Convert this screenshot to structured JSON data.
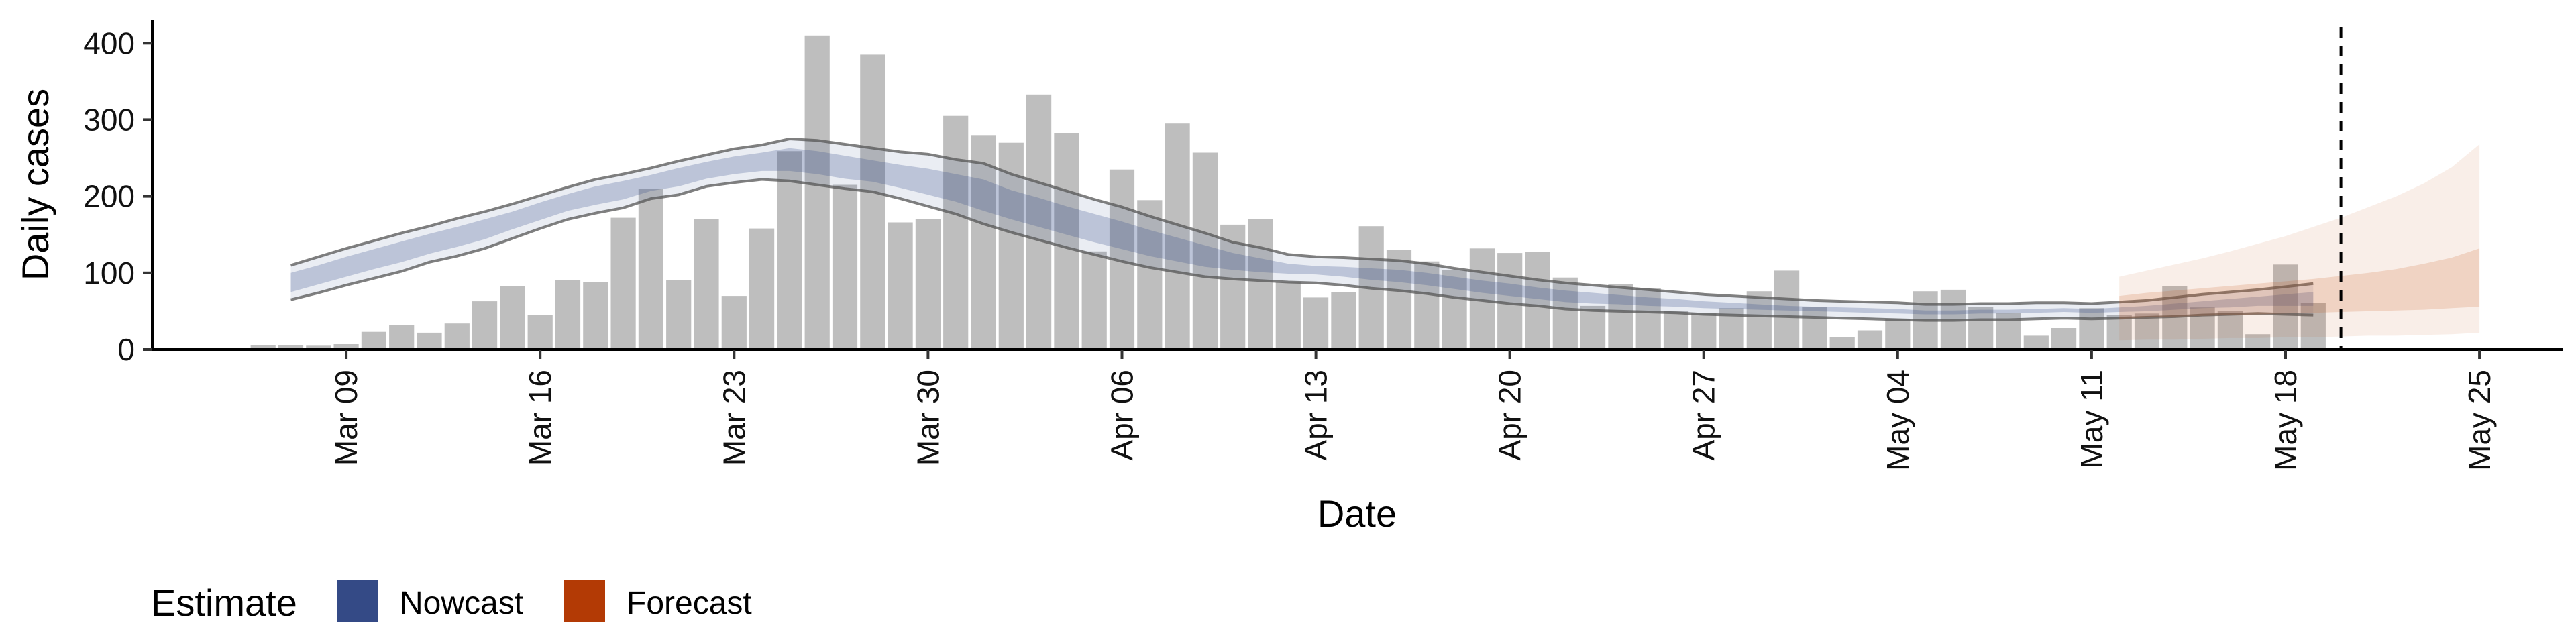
{
  "chart_data": {
    "type": "bar",
    "xlabel": "Date",
    "ylabel": "Daily cases",
    "ylim": [
      0,
      430
    ],
    "y_ticks": [
      0,
      100,
      200,
      300,
      400
    ],
    "x_ticks": [
      "Mar 09",
      "Mar 16",
      "Mar 23",
      "Mar 30",
      "Apr 06",
      "Apr 13",
      "Apr 20",
      "Apr 27",
      "May 04",
      "May 11",
      "May 18",
      "May 25"
    ],
    "x_tick_dates": [
      "2020-03-09",
      "2020-03-16",
      "2020-03-23",
      "2020-03-30",
      "2020-04-06",
      "2020-04-13",
      "2020-04-20",
      "2020-04-27",
      "2020-05-04",
      "2020-05-11",
      "2020-05-18",
      "2020-05-25"
    ],
    "xlim": [
      "2020-03-02",
      "2020-05-28"
    ],
    "grid": false,
    "vline_date": "2020-05-20",
    "legend": {
      "title": "Estimate",
      "position": "bottom-left",
      "entries": [
        {
          "label": "Nowcast",
          "color": "#344a86"
        },
        {
          "label": "Forecast",
          "color": "#b33a05"
        }
      ]
    },
    "bars": {
      "start_date": "2020-03-06",
      "color": "#bebebe",
      "values": [
        6,
        6,
        5,
        7,
        23,
        32,
        22,
        34,
        63,
        83,
        45,
        91,
        88,
        172,
        210,
        91,
        170,
        70,
        158,
        259,
        410,
        215,
        385,
        166,
        170,
        305,
        280,
        270,
        333,
        282,
        128,
        235,
        195,
        295,
        257,
        163,
        170,
        88,
        68,
        75,
        161,
        130,
        115,
        104,
        132,
        126,
        127,
        94,
        57,
        85,
        80,
        50,
        47,
        54,
        76,
        103,
        56,
        16,
        25,
        40,
        76,
        78,
        56,
        48,
        18,
        28,
        54,
        45,
        47,
        83,
        55,
        50,
        20,
        111,
        61
      ]
    },
    "nowcast": {
      "start_date": "2020-03-07",
      "end_date": "2020-05-11",
      "color": "#344a86",
      "outer_upper": [
        110,
        121,
        132,
        142,
        152,
        161,
        171,
        180,
        190,
        201,
        212,
        222,
        229,
        237,
        246,
        254,
        262,
        267,
        275,
        273,
        268,
        263,
        258,
        255,
        248,
        243,
        229,
        218,
        207,
        196,
        186,
        174,
        163,
        152,
        140,
        133,
        124,
        121,
        120,
        118,
        116,
        112,
        106,
        101,
        96,
        91,
        87,
        84,
        81,
        78,
        75,
        72,
        70,
        68,
        66,
        64,
        63,
        62,
        61,
        59,
        59,
        60,
        60,
        61,
        61,
        60,
        62,
        64,
        68,
        72,
        75,
        78,
        82,
        86
      ],
      "outer_lower": [
        65,
        74,
        84,
        93,
        102,
        114,
        122,
        132,
        145,
        158,
        170,
        178,
        185,
        197,
        202,
        213,
        218,
        222,
        220,
        215,
        210,
        206,
        197,
        187,
        177,
        164,
        153,
        143,
        133,
        124,
        115,
        107,
        101,
        95,
        92,
        90,
        88,
        87,
        84,
        80,
        77,
        73,
        68,
        64,
        60,
        57,
        53,
        51,
        50,
        49,
        48,
        46,
        45,
        44,
        43,
        42,
        41,
        40,
        39,
        38,
        38,
        39,
        39,
        40,
        41,
        40,
        41,
        42,
        43,
        45,
        46,
        47,
        46,
        45
      ],
      "inner_upper": [
        100,
        110,
        121,
        131,
        141,
        151,
        160,
        170,
        180,
        192,
        203,
        213,
        220,
        228,
        237,
        245,
        252,
        257,
        263,
        259,
        253,
        247,
        241,
        236,
        229,
        222,
        208,
        198,
        187,
        177,
        167,
        156,
        146,
        136,
        126,
        119,
        112,
        109,
        108,
        106,
        104,
        100,
        95,
        90,
        86,
        81,
        77,
        74,
        71,
        68,
        66,
        63,
        61,
        59,
        57,
        56,
        55,
        54,
        53,
        51,
        51,
        52,
        52,
        53,
        54,
        53,
        55,
        57,
        60,
        63,
        66,
        69,
        72,
        75
      ],
      "inner_lower": [
        75,
        85,
        95,
        105,
        114,
        125,
        134,
        144,
        157,
        169,
        181,
        189,
        196,
        207,
        213,
        223,
        229,
        233,
        233,
        229,
        223,
        219,
        211,
        202,
        193,
        181,
        170,
        160,
        150,
        140,
        131,
        122,
        115,
        108,
        104,
        101,
        99,
        98,
        95,
        91,
        88,
        84,
        79,
        74,
        70,
        66,
        62,
        60,
        59,
        57,
        56,
        54,
        53,
        52,
        51,
        50,
        49,
        48,
        47,
        46,
        46,
        47,
        47,
        48,
        49,
        48,
        49,
        50,
        52,
        54,
        55,
        57,
        57,
        57
      ]
    },
    "forecast": {
      "start_date": "2020-05-12",
      "end_date": "2020-05-25",
      "color": "#c8581e",
      "outer_upper": [
        95,
        103,
        111,
        119,
        128,
        138,
        148,
        160,
        172,
        186,
        200,
        217,
        238,
        268
      ],
      "outer_lower": [
        12,
        13,
        13,
        14,
        15,
        15,
        16,
        16,
        17,
        18,
        18,
        19,
        20,
        22
      ],
      "inner_upper": [
        70,
        74,
        77,
        80,
        83,
        86,
        89,
        92,
        96,
        100,
        105,
        112,
        120,
        132
      ],
      "inner_lower": [
        40,
        42,
        43,
        44,
        45,
        46,
        47,
        48,
        49,
        50,
        51,
        52,
        54,
        56
      ]
    }
  }
}
